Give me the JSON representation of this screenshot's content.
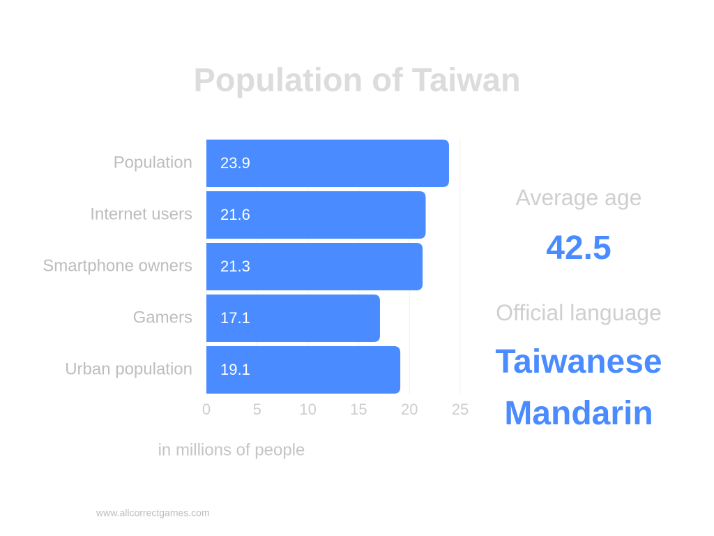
{
  "chart_data": {
    "type": "bar",
    "orientation": "horizontal",
    "title": "Population of Taiwan",
    "categories": [
      "Population",
      "Internet users",
      "Smartphone owners",
      "Gamers",
      "Urban population"
    ],
    "values": [
      23.9,
      21.6,
      21.3,
      17.1,
      19.1
    ],
    "color": "#4a8cff",
    "xlim": [
      0,
      25
    ],
    "xticks": [
      0,
      5,
      10,
      15,
      20,
      25
    ],
    "xlabel": "in millions of people",
    "grid": true
  },
  "stats": [
    {
      "label": "Average age",
      "value": "42.5"
    },
    {
      "label": "Official language",
      "value": "Taiwanese Mandarin"
    }
  ],
  "footer": "www.allcorrectgames.com"
}
